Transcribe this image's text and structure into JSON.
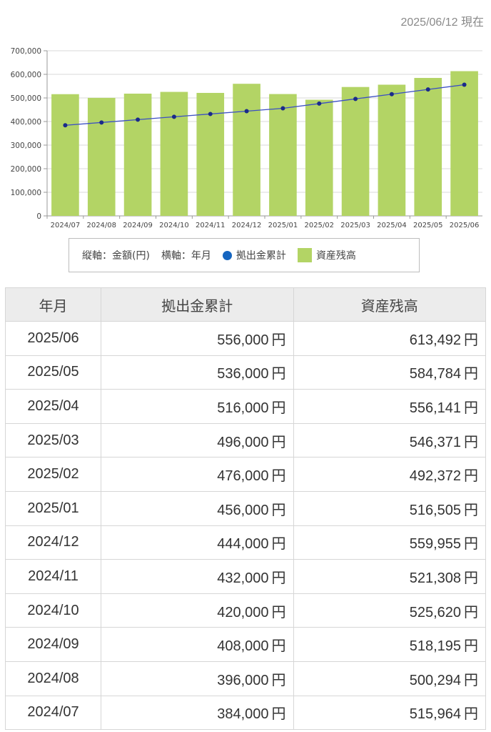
{
  "as_of": "2025/06/12 現在",
  "legend": {
    "axis_note_y": "縦軸：金額(円)",
    "axis_note_x": "横軸：年月",
    "line_label": "拠出金累計",
    "bar_label": "資産残高"
  },
  "colors": {
    "bar": "#b3d465",
    "line": "#3b4fc4",
    "dot": "#1a2a8a",
    "legend_dot": "#1565c0"
  },
  "chart_data": {
    "type": "bar",
    "categories": [
      "2024/07",
      "2024/08",
      "2024/09",
      "2024/10",
      "2024/11",
      "2024/12",
      "2025/01",
      "2025/02",
      "2025/03",
      "2025/04",
      "2025/05",
      "2025/06"
    ],
    "series": [
      {
        "name": "資産残高",
        "type": "bar",
        "values": [
          515964,
          500294,
          518195,
          525620,
          521308,
          559955,
          516505,
          492372,
          546371,
          556141,
          584784,
          613492
        ]
      },
      {
        "name": "拠出金累計",
        "type": "line",
        "values": [
          384000,
          396000,
          408000,
          420000,
          432000,
          444000,
          456000,
          476000,
          496000,
          516000,
          536000,
          556000
        ]
      }
    ],
    "ylim": [
      0,
      700000
    ],
    "yticks": [
      "0",
      "100,000",
      "200,000",
      "300,000",
      "400,000",
      "500,000",
      "600,000",
      "700,000"
    ],
    "grid": true,
    "legend_position": "bottom"
  },
  "table": {
    "headers": [
      "年月",
      "拠出金累計",
      "資産残高"
    ],
    "unit": "円",
    "rows": [
      {
        "month": "2025/06",
        "contrib": "556,000",
        "balance": "613,492"
      },
      {
        "month": "2025/05",
        "contrib": "536,000",
        "balance": "584,784"
      },
      {
        "month": "2025/04",
        "contrib": "516,000",
        "balance": "556,141"
      },
      {
        "month": "2025/03",
        "contrib": "496,000",
        "balance": "546,371"
      },
      {
        "month": "2025/02",
        "contrib": "476,000",
        "balance": "492,372"
      },
      {
        "month": "2025/01",
        "contrib": "456,000",
        "balance": "516,505"
      },
      {
        "month": "2024/12",
        "contrib": "444,000",
        "balance": "559,955"
      },
      {
        "month": "2024/11",
        "contrib": "432,000",
        "balance": "521,308"
      },
      {
        "month": "2024/10",
        "contrib": "420,000",
        "balance": "525,620"
      },
      {
        "month": "2024/09",
        "contrib": "408,000",
        "balance": "518,195"
      },
      {
        "month": "2024/08",
        "contrib": "396,000",
        "balance": "500,294"
      },
      {
        "month": "2024/07",
        "contrib": "384,000",
        "balance": "515,964"
      }
    ]
  }
}
